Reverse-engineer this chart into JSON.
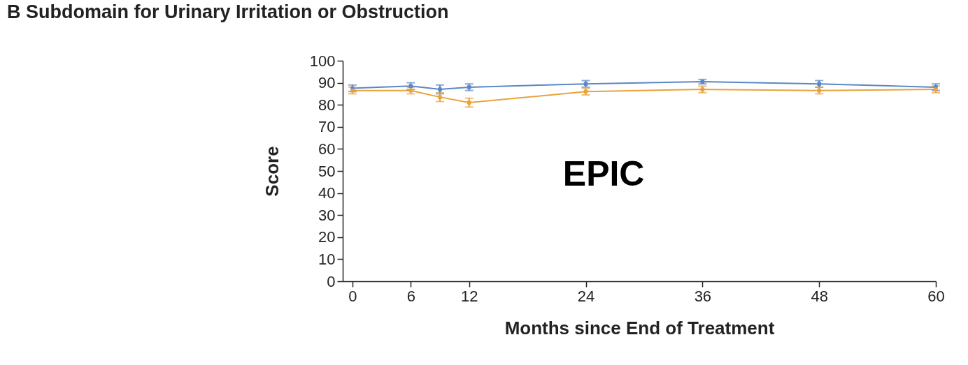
{
  "chart_data": {
    "type": "line",
    "title": "B  Subdomain for Urinary Irritation or Obstruction",
    "xlabel": "Months since End of Treatment",
    "ylabel": "Score",
    "x": [
      0,
      6,
      9,
      12,
      24,
      36,
      48,
      60
    ],
    "series": [
      {
        "color": "#5b87c6",
        "values": [
          87.5,
          88.5,
          87,
          88,
          89.5,
          90.5,
          89.5,
          88
        ],
        "errors": [
          1.5,
          1.5,
          2,
          1.5,
          1.5,
          1,
          1.5,
          1.5
        ]
      },
      {
        "color": "#e8a33d",
        "values": [
          86.5,
          86.5,
          83.5,
          81,
          86,
          87,
          86.5,
          87
        ],
        "errors": [
          1.5,
          1.5,
          2,
          2,
          1.5,
          1.5,
          1.5,
          1.5
        ]
      }
    ],
    "xlim": [
      -1,
      60
    ],
    "xticks": [
      0,
      6,
      12,
      24,
      36,
      48,
      60
    ],
    "ylim": [
      0,
      100
    ],
    "yticks": [
      0,
      10,
      20,
      30,
      40,
      50,
      60,
      70,
      80,
      90,
      100
    ],
    "marker": "square",
    "grid": false,
    "legend": false,
    "annotations": [
      "EPIC"
    ]
  }
}
